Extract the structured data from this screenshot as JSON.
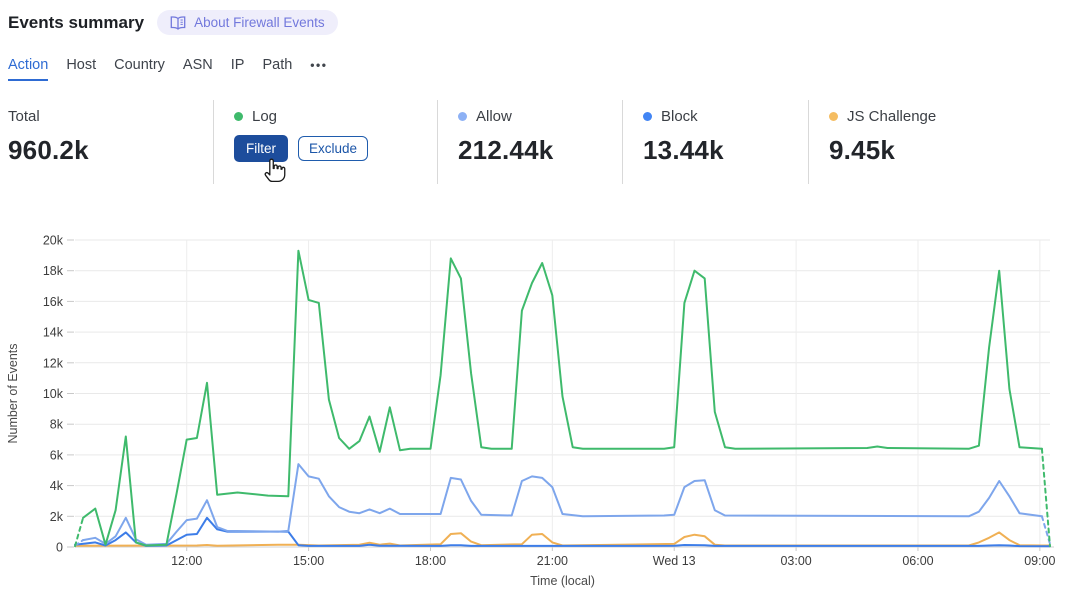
{
  "header": {
    "title": "Events summary",
    "about": {
      "label": "About Firewall Events",
      "icon": "open-book"
    }
  },
  "tabs": {
    "items": [
      {
        "label": "Action",
        "active": true
      },
      {
        "label": "Host",
        "active": false
      },
      {
        "label": "Country",
        "active": false
      },
      {
        "label": "ASN",
        "active": false
      },
      {
        "label": "IP",
        "active": false
      },
      {
        "label": "Path",
        "active": false
      }
    ],
    "more_label": "•••"
  },
  "stats": {
    "total": {
      "label": "Total",
      "value": "960.2k"
    },
    "log": {
      "label": "Log",
      "color": "#3fba6c",
      "filter_label": "Filter",
      "exclude_label": "Exclude"
    },
    "allow": {
      "label": "Allow",
      "value": "212.44k",
      "color": "#8db1f5"
    },
    "block": {
      "label": "Block",
      "value": "13.44k",
      "color": "#4285f4"
    },
    "js_challenge": {
      "label": "JS Challenge",
      "value": "9.45k",
      "color": "#f5bd62"
    }
  },
  "colors": {
    "tab_active": "#2e6bd3",
    "filter_button_bg": "#1d4d9c",
    "exclude_button_border": "#1f5cad",
    "about_pill_bg": "#efeefb",
    "about_pill_text": "#7278dc",
    "gridline": "#e9e9e9",
    "axis_text": "#3d3d3d"
  },
  "chart_data": {
    "type": "line",
    "title": "",
    "xlabel": "Time (local)",
    "ylabel": "Number of Events",
    "grid": true,
    "legend": "none on chart (series legend shown in stat cards above)",
    "x_axis": {
      "unit": "minutes since chart start (~09:15 local, spans 24h to 09:15 Wed)",
      "range": [
        0,
        1440
      ],
      "ticks": [
        {
          "m": 165,
          "label": "12:00"
        },
        {
          "m": 345,
          "label": "15:00"
        },
        {
          "m": 525,
          "label": "18:00"
        },
        {
          "m": 705,
          "label": "21:00"
        },
        {
          "m": 885,
          "label": "Wed 13"
        },
        {
          "m": 1065,
          "label": "03:00"
        },
        {
          "m": 1245,
          "label": "06:00"
        },
        {
          "m": 1425,
          "label": "09:00"
        }
      ]
    },
    "y_axis": {
      "unit": "events, values in thousands (k)",
      "range_k": [
        0,
        20
      ],
      "tick_labels": [
        "0",
        "2k",
        "4k",
        "6k",
        "8k",
        "10k",
        "12k",
        "14k",
        "16k",
        "18k",
        "20k"
      ]
    },
    "series": [
      {
        "name": "Log",
        "color": "#3fba6c",
        "dash_lead": [
          [
            0,
            0.05
          ],
          [
            12,
            1.9
          ]
        ],
        "points_k": [
          [
            12,
            1.9
          ],
          [
            30,
            2.5
          ],
          [
            45,
            0.15
          ],
          [
            60,
            2.4
          ],
          [
            75,
            7.2
          ],
          [
            90,
            0.3
          ],
          [
            105,
            0.1
          ],
          [
            135,
            0.15
          ],
          [
            150,
            3.5
          ],
          [
            165,
            7.0
          ],
          [
            180,
            7.1
          ],
          [
            195,
            10.7
          ],
          [
            210,
            3.4
          ],
          [
            240,
            3.55
          ],
          [
            285,
            3.35
          ],
          [
            315,
            3.3
          ],
          [
            330,
            19.3
          ],
          [
            345,
            16.1
          ],
          [
            360,
            15.9
          ],
          [
            375,
            9.6
          ],
          [
            390,
            7.1
          ],
          [
            405,
            6.4
          ],
          [
            420,
            6.9
          ],
          [
            435,
            8.5
          ],
          [
            450,
            6.2
          ],
          [
            465,
            9.1
          ],
          [
            480,
            6.3
          ],
          [
            495,
            6.4
          ],
          [
            525,
            6.4
          ],
          [
            540,
            11.2
          ],
          [
            555,
            18.8
          ],
          [
            570,
            17.5
          ],
          [
            585,
            11.3
          ],
          [
            600,
            6.5
          ],
          [
            615,
            6.4
          ],
          [
            645,
            6.4
          ],
          [
            660,
            15.4
          ],
          [
            675,
            17.2
          ],
          [
            690,
            18.5
          ],
          [
            705,
            16.4
          ],
          [
            720,
            9.8
          ],
          [
            735,
            6.5
          ],
          [
            750,
            6.4
          ],
          [
            870,
            6.4
          ],
          [
            885,
            6.5
          ],
          [
            900,
            15.9
          ],
          [
            915,
            18.0
          ],
          [
            930,
            17.5
          ],
          [
            945,
            8.8
          ],
          [
            960,
            6.5
          ],
          [
            975,
            6.4
          ],
          [
            1170,
            6.45
          ],
          [
            1185,
            6.55
          ],
          [
            1200,
            6.45
          ],
          [
            1320,
            6.4
          ],
          [
            1335,
            6.6
          ],
          [
            1350,
            13.0
          ],
          [
            1365,
            18.0
          ],
          [
            1380,
            10.3
          ],
          [
            1395,
            6.5
          ],
          [
            1428,
            6.4
          ]
        ],
        "dash_tail": [
          [
            1428,
            6.4
          ],
          [
            1440,
            0.05
          ]
        ]
      },
      {
        "name": "Allow",
        "color": "#7ea6ec",
        "dash_lead": [
          [
            0,
            0.1
          ],
          [
            12,
            0.45
          ]
        ],
        "points_k": [
          [
            12,
            0.45
          ],
          [
            30,
            0.6
          ],
          [
            45,
            0.2
          ],
          [
            60,
            0.7
          ],
          [
            75,
            1.9
          ],
          [
            90,
            0.5
          ],
          [
            105,
            0.15
          ],
          [
            135,
            0.2
          ],
          [
            150,
            1.0
          ],
          [
            165,
            1.75
          ],
          [
            180,
            1.85
          ],
          [
            195,
            3.05
          ],
          [
            210,
            1.3
          ],
          [
            225,
            1.05
          ],
          [
            300,
            1.0
          ],
          [
            315,
            1.05
          ],
          [
            330,
            5.4
          ],
          [
            345,
            4.6
          ],
          [
            360,
            4.45
          ],
          [
            375,
            3.3
          ],
          [
            390,
            2.6
          ],
          [
            405,
            2.3
          ],
          [
            420,
            2.2
          ],
          [
            435,
            2.45
          ],
          [
            450,
            2.2
          ],
          [
            465,
            2.5
          ],
          [
            480,
            2.15
          ],
          [
            540,
            2.15
          ],
          [
            555,
            4.5
          ],
          [
            570,
            4.4
          ],
          [
            585,
            3.0
          ],
          [
            600,
            2.1
          ],
          [
            645,
            2.05
          ],
          [
            660,
            4.3
          ],
          [
            675,
            4.6
          ],
          [
            690,
            4.5
          ],
          [
            705,
            3.9
          ],
          [
            720,
            2.15
          ],
          [
            750,
            2.0
          ],
          [
            870,
            2.05
          ],
          [
            885,
            2.1
          ],
          [
            900,
            3.9
          ],
          [
            915,
            4.3
          ],
          [
            930,
            4.35
          ],
          [
            945,
            2.4
          ],
          [
            960,
            2.05
          ],
          [
            1320,
            2.0
          ],
          [
            1335,
            2.3
          ],
          [
            1350,
            3.2
          ],
          [
            1365,
            4.3
          ],
          [
            1380,
            3.3
          ],
          [
            1395,
            2.2
          ],
          [
            1428,
            2.0
          ]
        ],
        "dash_tail": [
          [
            1428,
            2.0
          ],
          [
            1440,
            0.2
          ]
        ]
      },
      {
        "name": "Block",
        "color": "#3d7de8",
        "points_k": [
          [
            0,
            0.15
          ],
          [
            30,
            0.3
          ],
          [
            45,
            0.1
          ],
          [
            60,
            0.45
          ],
          [
            75,
            0.95
          ],
          [
            90,
            0.3
          ],
          [
            105,
            0.07
          ],
          [
            135,
            0.1
          ],
          [
            150,
            0.45
          ],
          [
            165,
            0.8
          ],
          [
            180,
            0.85
          ],
          [
            195,
            1.9
          ],
          [
            210,
            1.15
          ],
          [
            225,
            1.0
          ],
          [
            315,
            1.0
          ],
          [
            330,
            0.12
          ],
          [
            345,
            0.07
          ],
          [
            420,
            0.07
          ],
          [
            435,
            0.15
          ],
          [
            450,
            0.08
          ],
          [
            540,
            0.07
          ],
          [
            555,
            0.12
          ],
          [
            570,
            0.12
          ],
          [
            585,
            0.07
          ],
          [
            885,
            0.08
          ],
          [
            900,
            0.13
          ],
          [
            930,
            0.12
          ],
          [
            945,
            0.07
          ],
          [
            1335,
            0.07
          ],
          [
            1350,
            0.1
          ],
          [
            1365,
            0.12
          ],
          [
            1380,
            0.1
          ],
          [
            1395,
            0.06
          ],
          [
            1440,
            0.05
          ]
        ]
      },
      {
        "name": "JS Challenge",
        "color": "#f0b054",
        "points_k": [
          [
            0,
            0.08
          ],
          [
            180,
            0.1
          ],
          [
            195,
            0.13
          ],
          [
            210,
            0.08
          ],
          [
            300,
            0.15
          ],
          [
            330,
            0.15
          ],
          [
            360,
            0.1
          ],
          [
            420,
            0.15
          ],
          [
            435,
            0.28
          ],
          [
            450,
            0.15
          ],
          [
            465,
            0.22
          ],
          [
            480,
            0.1
          ],
          [
            540,
            0.18
          ],
          [
            555,
            0.85
          ],
          [
            570,
            0.9
          ],
          [
            585,
            0.35
          ],
          [
            600,
            0.12
          ],
          [
            660,
            0.18
          ],
          [
            675,
            0.8
          ],
          [
            690,
            0.85
          ],
          [
            705,
            0.3
          ],
          [
            720,
            0.1
          ],
          [
            885,
            0.2
          ],
          [
            900,
            0.65
          ],
          [
            915,
            0.8
          ],
          [
            930,
            0.7
          ],
          [
            945,
            0.15
          ],
          [
            960,
            0.1
          ],
          [
            1320,
            0.1
          ],
          [
            1335,
            0.3
          ],
          [
            1350,
            0.6
          ],
          [
            1365,
            0.95
          ],
          [
            1380,
            0.45
          ],
          [
            1395,
            0.12
          ],
          [
            1428,
            0.1
          ],
          [
            1440,
            0.1
          ]
        ]
      }
    ]
  }
}
